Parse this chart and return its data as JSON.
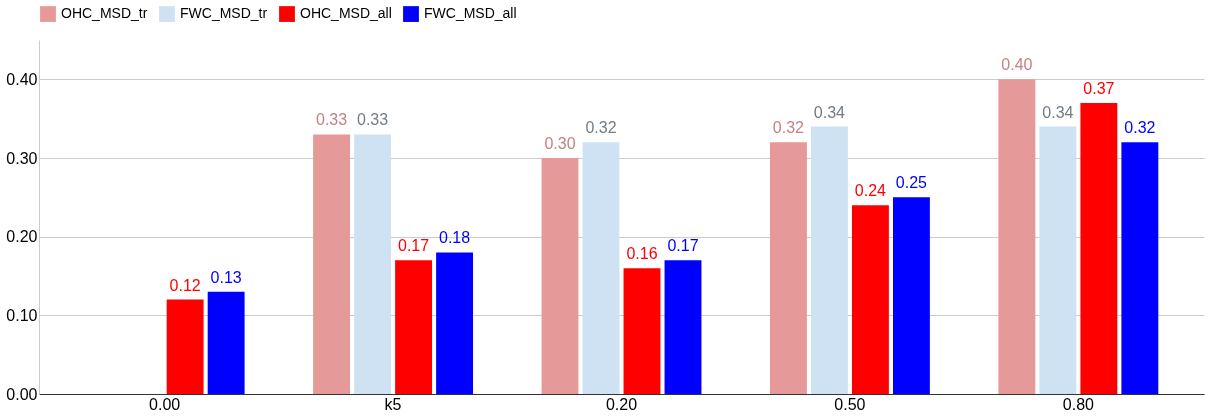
{
  "chart_data": {
    "type": "bar",
    "categories": [
      "0.00",
      "k5",
      "0.20",
      "0.50",
      "0.80"
    ],
    "series": [
      {
        "name": "OHC_MSD_tr",
        "color": "#e69999",
        "values": [
          null,
          0.33,
          0.3,
          0.32,
          0.4
        ],
        "value_labels": [
          null,
          "0.33",
          "0.30",
          "0.32",
          "0.40"
        ]
      },
      {
        "name": "FWC_MSD_tr",
        "color": "#cfe2f3",
        "values": [
          null,
          0.33,
          0.32,
          0.34,
          0.34
        ],
        "value_labels": [
          null,
          "0.33",
          "0.32",
          "0.34",
          "0.34"
        ]
      },
      {
        "name": "OHC_MSD_all",
        "color": "#ff0000",
        "values": [
          0.12,
          0.17,
          0.16,
          0.24,
          0.37
        ],
        "value_labels": [
          "0.12",
          "0.17",
          "0.16",
          "0.24",
          "0.37"
        ]
      },
      {
        "name": "FWC_MSD_all",
        "color": "#0000ff",
        "values": [
          0.13,
          0.18,
          0.17,
          0.25,
          0.32
        ],
        "value_labels": [
          "0.13",
          "0.18",
          "0.17",
          "0.25",
          "0.32"
        ]
      }
    ],
    "ylim": [
      0,
      0.45
    ],
    "yticks": [
      {
        "value": 0,
        "label": "0.00"
      },
      {
        "value": 0.1,
        "label": "0.10"
      },
      {
        "value": 0.2,
        "label": "0.20"
      },
      {
        "value": 0.3,
        "label": "0.30"
      },
      {
        "value": 0.4,
        "label": "0.40"
      }
    ],
    "grid": "y",
    "legend": "top"
  }
}
